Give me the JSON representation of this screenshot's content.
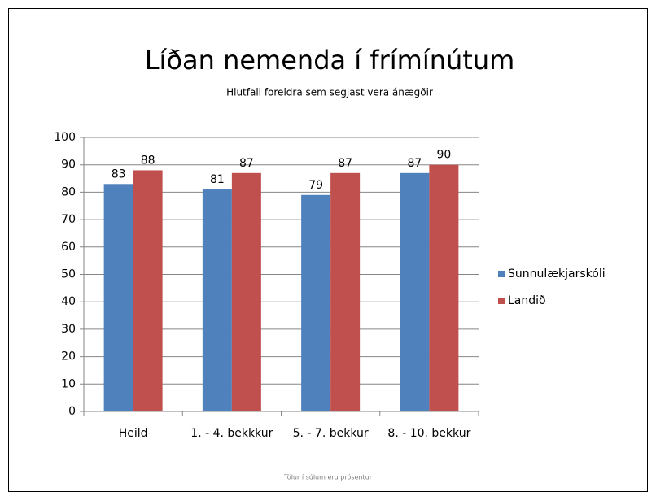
{
  "chart_data": {
    "type": "bar",
    "title": "Líðan nemenda í frímínútum",
    "subtitle": "Hlutfall foreldra sem segjast vera ánægðir",
    "footnote": "Tölur í súlum eru prósentur",
    "categories": [
      "Heild",
      "1. - 4. bekkkur",
      "5. - 7. bekkur",
      "8. - 10. bekkur"
    ],
    "series": [
      {
        "name": "Sunnulækjarskóli",
        "color": "#4f81bd",
        "values": [
          83,
          81,
          79,
          87
        ]
      },
      {
        "name": "Landið",
        "color": "#c0504d",
        "values": [
          88,
          87,
          87,
          90
        ]
      }
    ],
    "ylim": [
      0,
      100
    ],
    "yticks": [
      0,
      10,
      20,
      30,
      40,
      50,
      60,
      70,
      80,
      90,
      100
    ],
    "grid": true,
    "legend": "right"
  }
}
